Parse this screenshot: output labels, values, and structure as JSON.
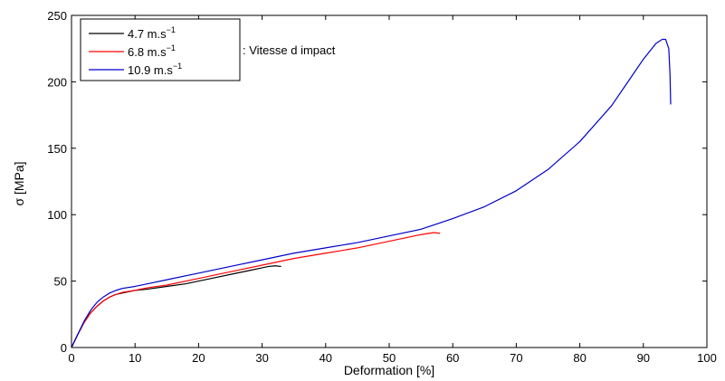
{
  "chart_data": {
    "type": "line",
    "title": "",
    "xlabel": "Deformation [%]",
    "ylabel": "σ [MPa]",
    "xlim": [
      0,
      100
    ],
    "ylim": [
      0,
      250
    ],
    "xticks": [
      0,
      10,
      20,
      30,
      40,
      50,
      60,
      70,
      80,
      90,
      100
    ],
    "yticks": [
      0,
      50,
      100,
      150,
      200,
      250
    ],
    "grid": false,
    "legend_position": "top-left",
    "legend_note": ": Vitesse d impact",
    "series": [
      {
        "name": "4.7 m.s",
        "name_superscript": "−1",
        "color": "#000000",
        "x": [
          0,
          1,
          2,
          3,
          4,
          5,
          6,
          7,
          8,
          10,
          12,
          15,
          18,
          20,
          22,
          25,
          28,
          30,
          31,
          32,
          33
        ],
        "y": [
          0,
          10,
          19,
          26,
          31,
          35,
          38,
          40,
          41,
          43,
          44,
          46,
          48,
          50,
          52,
          55,
          58,
          60,
          61,
          61.5,
          61
        ]
      },
      {
        "name": "6.8 m.s",
        "name_superscript": "−1",
        "color": "#ff0000",
        "x": [
          0,
          1,
          2,
          3,
          4,
          5,
          6,
          7,
          8,
          10,
          12,
          15,
          20,
          25,
          30,
          35,
          40,
          45,
          50,
          55,
          57,
          58
        ],
        "y": [
          0,
          10,
          19,
          26,
          31,
          35,
          38,
          40,
          41.5,
          43,
          45,
          47,
          52,
          57,
          62,
          67,
          71,
          75,
          80,
          85,
          86.5,
          86
        ]
      },
      {
        "name": "10.9 m.s",
        "name_superscript": "−1",
        "color": "#0000cc",
        "x": [
          0,
          1,
          2,
          3,
          4,
          5,
          6,
          7,
          8,
          10,
          12,
          15,
          20,
          25,
          30,
          35,
          40,
          45,
          50,
          55,
          60,
          65,
          70,
          75,
          80,
          85,
          88,
          90,
          92,
          93,
          93.5,
          94,
          94.2,
          94.3
        ],
        "y": [
          0,
          10,
          20,
          28,
          34,
          38,
          41,
          43,
          44.5,
          46,
          48,
          51,
          56,
          61,
          66,
          71,
          75,
          79,
          84,
          89,
          97,
          106,
          118,
          134,
          155,
          182,
          203,
          217,
          229,
          232,
          232,
          225,
          205,
          183
        ]
      }
    ]
  }
}
